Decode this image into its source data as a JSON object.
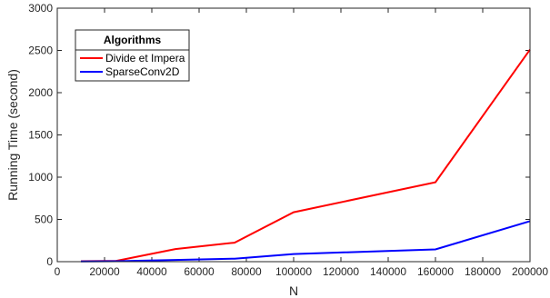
{
  "chart_data": {
    "type": "line",
    "xlabel": "N",
    "ylabel": "Running Time (second)",
    "xlim": [
      0,
      200000
    ],
    "ylim": [
      0,
      3000
    ],
    "xticks": [
      0,
      20000,
      40000,
      60000,
      80000,
      100000,
      120000,
      140000,
      160000,
      180000,
      200000
    ],
    "yticks": [
      0,
      500,
      1000,
      1500,
      2000,
      2500,
      3000
    ],
    "grid": false,
    "legend": {
      "title": "Algorithms",
      "placement": "top-left"
    },
    "series": [
      {
        "name": "Divide et Impera",
        "color": "#ff0000",
        "x": [
          10000,
          25000,
          50000,
          75000,
          100000,
          160000,
          200000
        ],
        "y": [
          5,
          10,
          150,
          225,
          585,
          940,
          2510
        ]
      },
      {
        "name": "SparseConv2D",
        "color": "#0000ff",
        "x": [
          10000,
          25000,
          50000,
          75000,
          100000,
          160000,
          200000
        ],
        "y": [
          2,
          5,
          20,
          35,
          90,
          145,
          480
        ]
      }
    ]
  }
}
